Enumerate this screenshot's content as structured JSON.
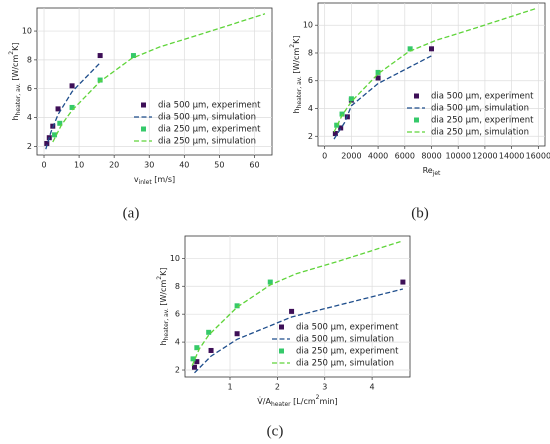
{
  "chart_data": [
    {
      "type": "line",
      "caption": "(a)",
      "xlabel": [
        {
          "t": "v"
        },
        {
          "t": "inlet",
          "s": "sub"
        },
        {
          "t": " [m/s]"
        }
      ],
      "ylabel": [
        {
          "t": "h"
        },
        {
          "t": "heater, av.",
          "s": "sub"
        },
        {
          "t": " [W/cm"
        },
        {
          "t": "2",
          "s": "sup"
        },
        {
          "t": "K]"
        }
      ],
      "xlim": [
        -2,
        65
      ],
      "xticks": [
        0,
        10,
        20,
        30,
        40,
        50,
        60
      ],
      "ylim": [
        1.4,
        11.6
      ],
      "yticks": [
        2,
        4,
        6,
        8,
        10
      ],
      "grid": true,
      "legend": "lower right",
      "series": [
        {
          "name": "dia 500 µm, experiment",
          "style": "marker",
          "color": "#3d0f57",
          "x": [
            0.8,
            1.5,
            2.5,
            4,
            8,
            16
          ],
          "values": [
            2.2,
            2.6,
            3.4,
            4.6,
            6.2,
            8.3
          ]
        },
        {
          "name": "dia 500 µm, simulation",
          "style": "dashed",
          "color": "#1f4e8c",
          "x": [
            0.5,
            2,
            4,
            8,
            16
          ],
          "values": [
            1.8,
            3.0,
            4.2,
            5.8,
            7.8
          ]
        },
        {
          "name": "dia 250 µm, experiment",
          "style": "marker",
          "color": "#35c96a",
          "x": [
            3,
            4.5,
            8,
            16,
            25.5
          ],
          "values": [
            2.8,
            3.6,
            4.7,
            6.6,
            8.3
          ]
        },
        {
          "name": "dia 250 µm, simulation",
          "style": "dashed",
          "color": "#5fd43a",
          "x": [
            2.5,
            5,
            8,
            16,
            25,
            33,
            45,
            63
          ],
          "values": [
            2.3,
            3.5,
            4.5,
            6.5,
            8.1,
            8.9,
            9.8,
            11.2
          ]
        }
      ]
    },
    {
      "type": "line",
      "caption": "(b)",
      "xlabel": [
        {
          "t": "Re"
        },
        {
          "t": "jet",
          "s": "sub"
        }
      ],
      "ylabel": [
        {
          "t": "h"
        },
        {
          "t": "heater, av.",
          "s": "sub"
        },
        {
          "t": " [W/cm"
        },
        {
          "t": "2",
          "s": "sup"
        },
        {
          "t": "K]"
        }
      ],
      "xlim": [
        -500,
        16500
      ],
      "xticks": [
        0,
        2000,
        4000,
        6000,
        8000,
        10000,
        12000,
        14000,
        16000
      ],
      "ylim": [
        1.3,
        11.6
      ],
      "yticks": [
        2,
        4,
        6,
        8,
        10
      ],
      "grid": true,
      "legend": "lower right",
      "series": [
        {
          "name": "dia 500 µm, experiment",
          "style": "marker",
          "color": "#3d0f57",
          "x": [
            800,
            1200,
            1700,
            2000,
            4000,
            8000
          ],
          "values": [
            2.2,
            2.6,
            3.4,
            4.6,
            6.2,
            8.3
          ]
        },
        {
          "name": "dia 500 µm, simulation",
          "style": "dashed",
          "color": "#1f4e8c",
          "x": [
            700,
            1500,
            2000,
            4000,
            8000
          ],
          "values": [
            1.8,
            3.0,
            4.2,
            5.8,
            7.8
          ]
        },
        {
          "name": "dia 250 µm, experiment",
          "style": "marker",
          "color": "#35c96a",
          "x": [
            900,
            1300,
            2000,
            4000,
            6400
          ],
          "values": [
            2.8,
            3.6,
            4.7,
            6.6,
            8.3
          ]
        },
        {
          "name": "dia 250 µm, simulation",
          "style": "dashed",
          "color": "#5fd43a",
          "x": [
            700,
            1300,
            2000,
            4000,
            6300,
            8300,
            11300,
            15800
          ],
          "values": [
            2.3,
            3.5,
            4.5,
            6.5,
            8.1,
            8.9,
            9.8,
            11.2
          ]
        }
      ]
    },
    {
      "type": "line",
      "caption": "(c)",
      "xlabel": [
        {
          "t": "V̇/A"
        },
        {
          "t": "heater",
          "s": "sub"
        },
        {
          "t": " [L/cm"
        },
        {
          "t": "2",
          "s": "sup"
        },
        {
          "t": "min]"
        }
      ],
      "ylabel": [
        {
          "t": "h"
        },
        {
          "t": "heater, av.",
          "s": "sub"
        },
        {
          "t": " [W/cm"
        },
        {
          "t": "2",
          "s": "sup"
        },
        {
          "t": "K]"
        }
      ],
      "xlim": [
        0.05,
        4.8
      ],
      "xticks": [
        1,
        2,
        3,
        4
      ],
      "ylim": [
        1.5,
        11.6
      ],
      "yticks": [
        2,
        4,
        6,
        8,
        10
      ],
      "grid": true,
      "legend": "lower right",
      "series": [
        {
          "name": "dia 500 µm, experiment",
          "style": "marker",
          "color": "#3d0f57",
          "x": [
            0.25,
            0.3,
            0.6,
            1.15,
            2.3,
            4.65
          ],
          "values": [
            2.2,
            2.6,
            3.4,
            4.6,
            6.2,
            8.3
          ]
        },
        {
          "name": "dia 500 µm, simulation",
          "style": "dashed",
          "color": "#1f4e8c",
          "x": [
            0.25,
            0.6,
            1.15,
            2.3,
            4.65
          ],
          "values": [
            1.8,
            3.0,
            4.2,
            5.8,
            7.8
          ]
        },
        {
          "name": "dia 250 µm, experiment",
          "style": "marker",
          "color": "#35c96a",
          "x": [
            0.22,
            0.3,
            0.55,
            1.15,
            1.85
          ],
          "values": [
            2.8,
            3.6,
            4.7,
            6.6,
            8.3
          ]
        },
        {
          "name": "dia 250 µm, simulation",
          "style": "dashed",
          "color": "#5fd43a",
          "x": [
            0.2,
            0.35,
            0.55,
            1.15,
            1.85,
            2.4,
            3.3,
            4.6
          ],
          "values": [
            2.3,
            3.5,
            4.5,
            6.5,
            8.1,
            8.9,
            9.8,
            11.2
          ]
        }
      ]
    }
  ]
}
